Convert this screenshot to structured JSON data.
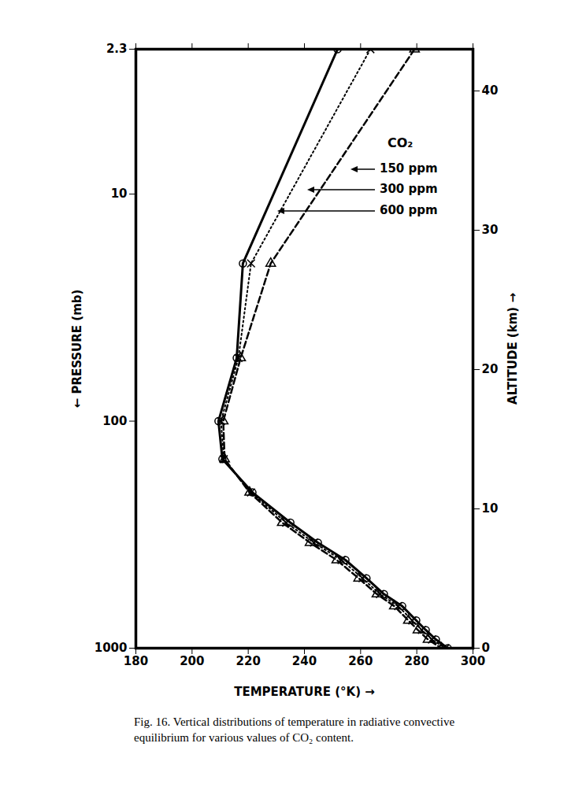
{
  "chart_data": {
    "type": "line",
    "caption": "Fig. 16. Vertical distributions of temperature in radiative convective equilibrium for various values of CO₂ content.",
    "xlabel": "TEMPERATURE (°K)",
    "ylabel": "PRESSURE (mb)",
    "y2label": "ALTITUDE (km)",
    "legend_title": "CO₂",
    "legend": "upper right",
    "log": "y",
    "xlim": [
      180,
      300
    ],
    "xticks": [
      180,
      200,
      220,
      240,
      260,
      280,
      300
    ],
    "ylim": [
      1000,
      2.3
    ],
    "yticks": [
      2.3,
      10,
      100,
      1000
    ],
    "y2lim": [
      0,
      43
    ],
    "y2ticks": [
      0,
      10,
      20,
      30,
      40
    ],
    "y": [
      2.3,
      20.2,
      52.7,
      100,
      147,
      206,
      280,
      343,
      409,
      492,
      578,
      653,
      755,
      832,
      916,
      1000
    ],
    "series": [
      {
        "name": "150 ppm",
        "color": "#000000",
        "marker": "triangle",
        "line_style": "dashed",
        "values": [
          279.2,
          228,
          217.3,
          211.1,
          211.6,
          220.5,
          232.1,
          242,
          251.5,
          259.3,
          265.8,
          272,
          277,
          280.4,
          284,
          288.8
        ]
      },
      {
        "name": "300 ppm",
        "color": "#000000",
        "marker": "x",
        "line_style": "dotted",
        "values": [
          263.5,
          221,
          216.5,
          210.3,
          211.3,
          221,
          233.5,
          243.4,
          253.2,
          260.7,
          266.9,
          273.4,
          278.4,
          281.8,
          285.4,
          290.2
        ]
      },
      {
        "name": "600 ppm",
        "color": "#000000",
        "marker": "circle",
        "line_style": "solid",
        "values": [
          251.8,
          218.1,
          215.9,
          209.4,
          210.8,
          221.5,
          235,
          244.8,
          254.6,
          262.1,
          268.3,
          274.8,
          279.8,
          283.2,
          286.8,
          291
        ]
      }
    ]
  }
}
